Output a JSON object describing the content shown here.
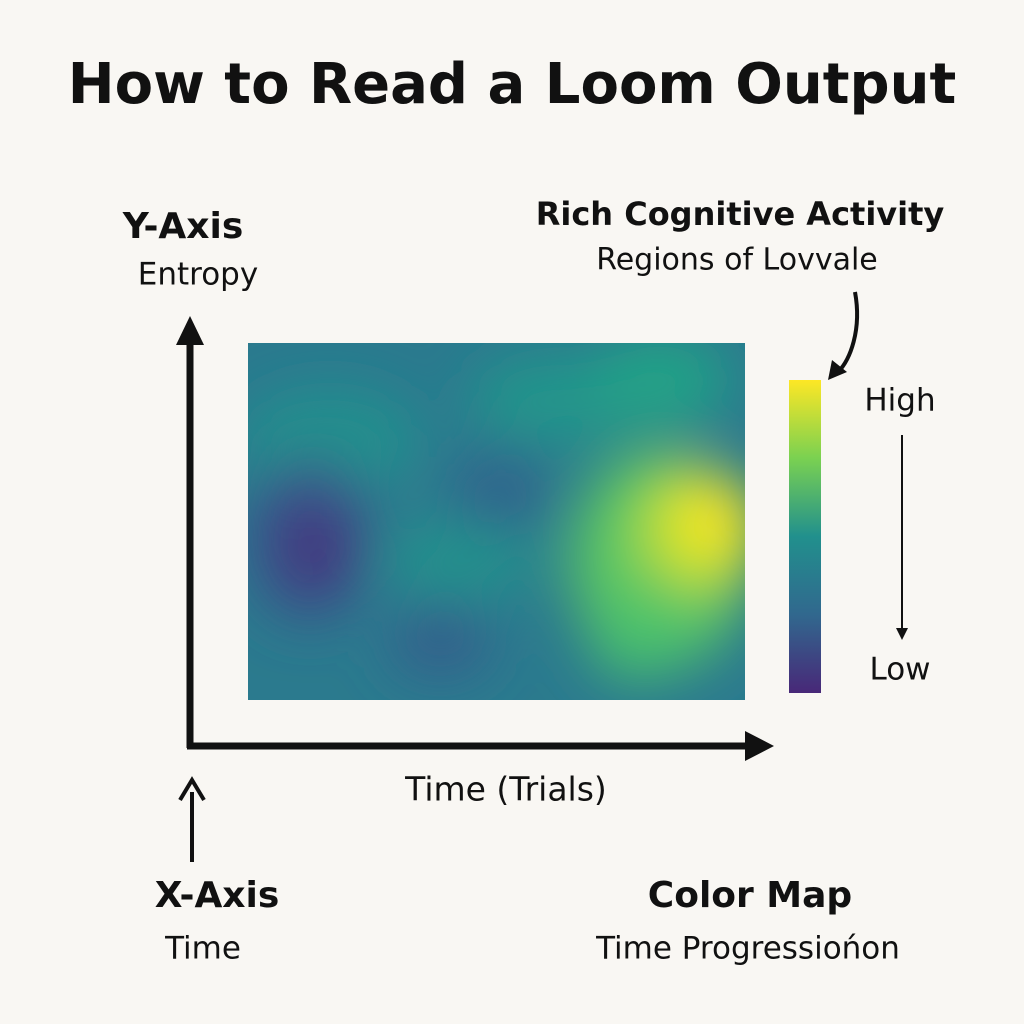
{
  "header": {
    "title": "How to Read a Loom Output"
  },
  "y_axis": {
    "heading": "Y-Axis",
    "label": "Entropy"
  },
  "x_axis": {
    "heading": "X-Axis",
    "label": "Time",
    "axis_title": "Time (Trials)"
  },
  "callout": {
    "heading": "Rich Cognitive Activity",
    "text": "Regions of Lovvale"
  },
  "colorbar": {
    "high": "High",
    "low": "Low"
  },
  "color_map": {
    "heading": "Color Map",
    "text": "Time Progressiońon"
  }
}
